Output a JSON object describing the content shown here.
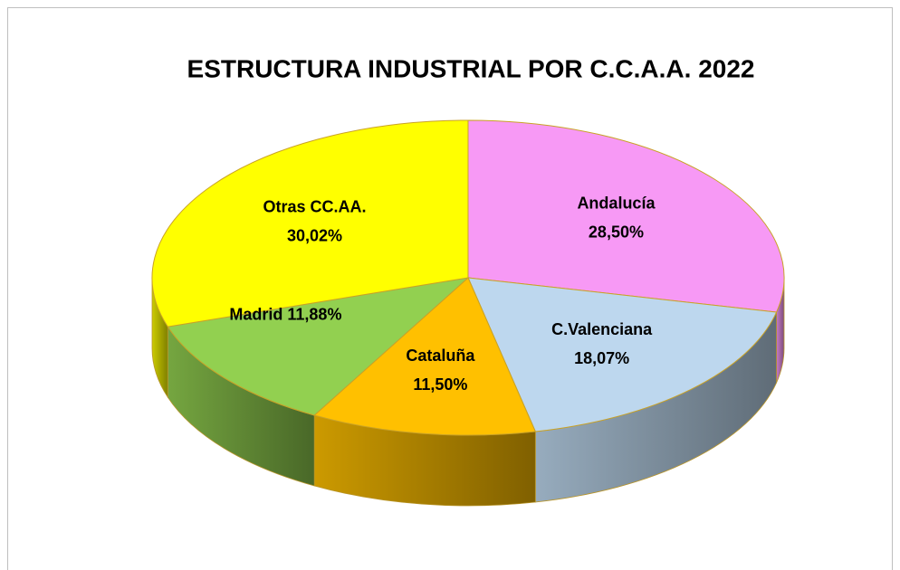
{
  "chart_data": {
    "type": "pie",
    "title": "ESTRUCTURA INDUSTRIAL POR  C.C.A.A. 2022",
    "categories": [
      "Andalucía",
      "C.Valenciana",
      "Cataluña",
      "Madrid",
      "Otras CC.AA."
    ],
    "values": [
      28.5,
      18.07,
      11.5,
      11.88,
      30.02
    ],
    "value_labels": [
      "28,50%",
      "18,07%",
      "11,50%",
      "11,88%",
      "30,02%"
    ],
    "colors": [
      "#f799f5",
      "#bdd7ee",
      "#ffc000",
      "#92d050",
      "#ffff00"
    ]
  }
}
